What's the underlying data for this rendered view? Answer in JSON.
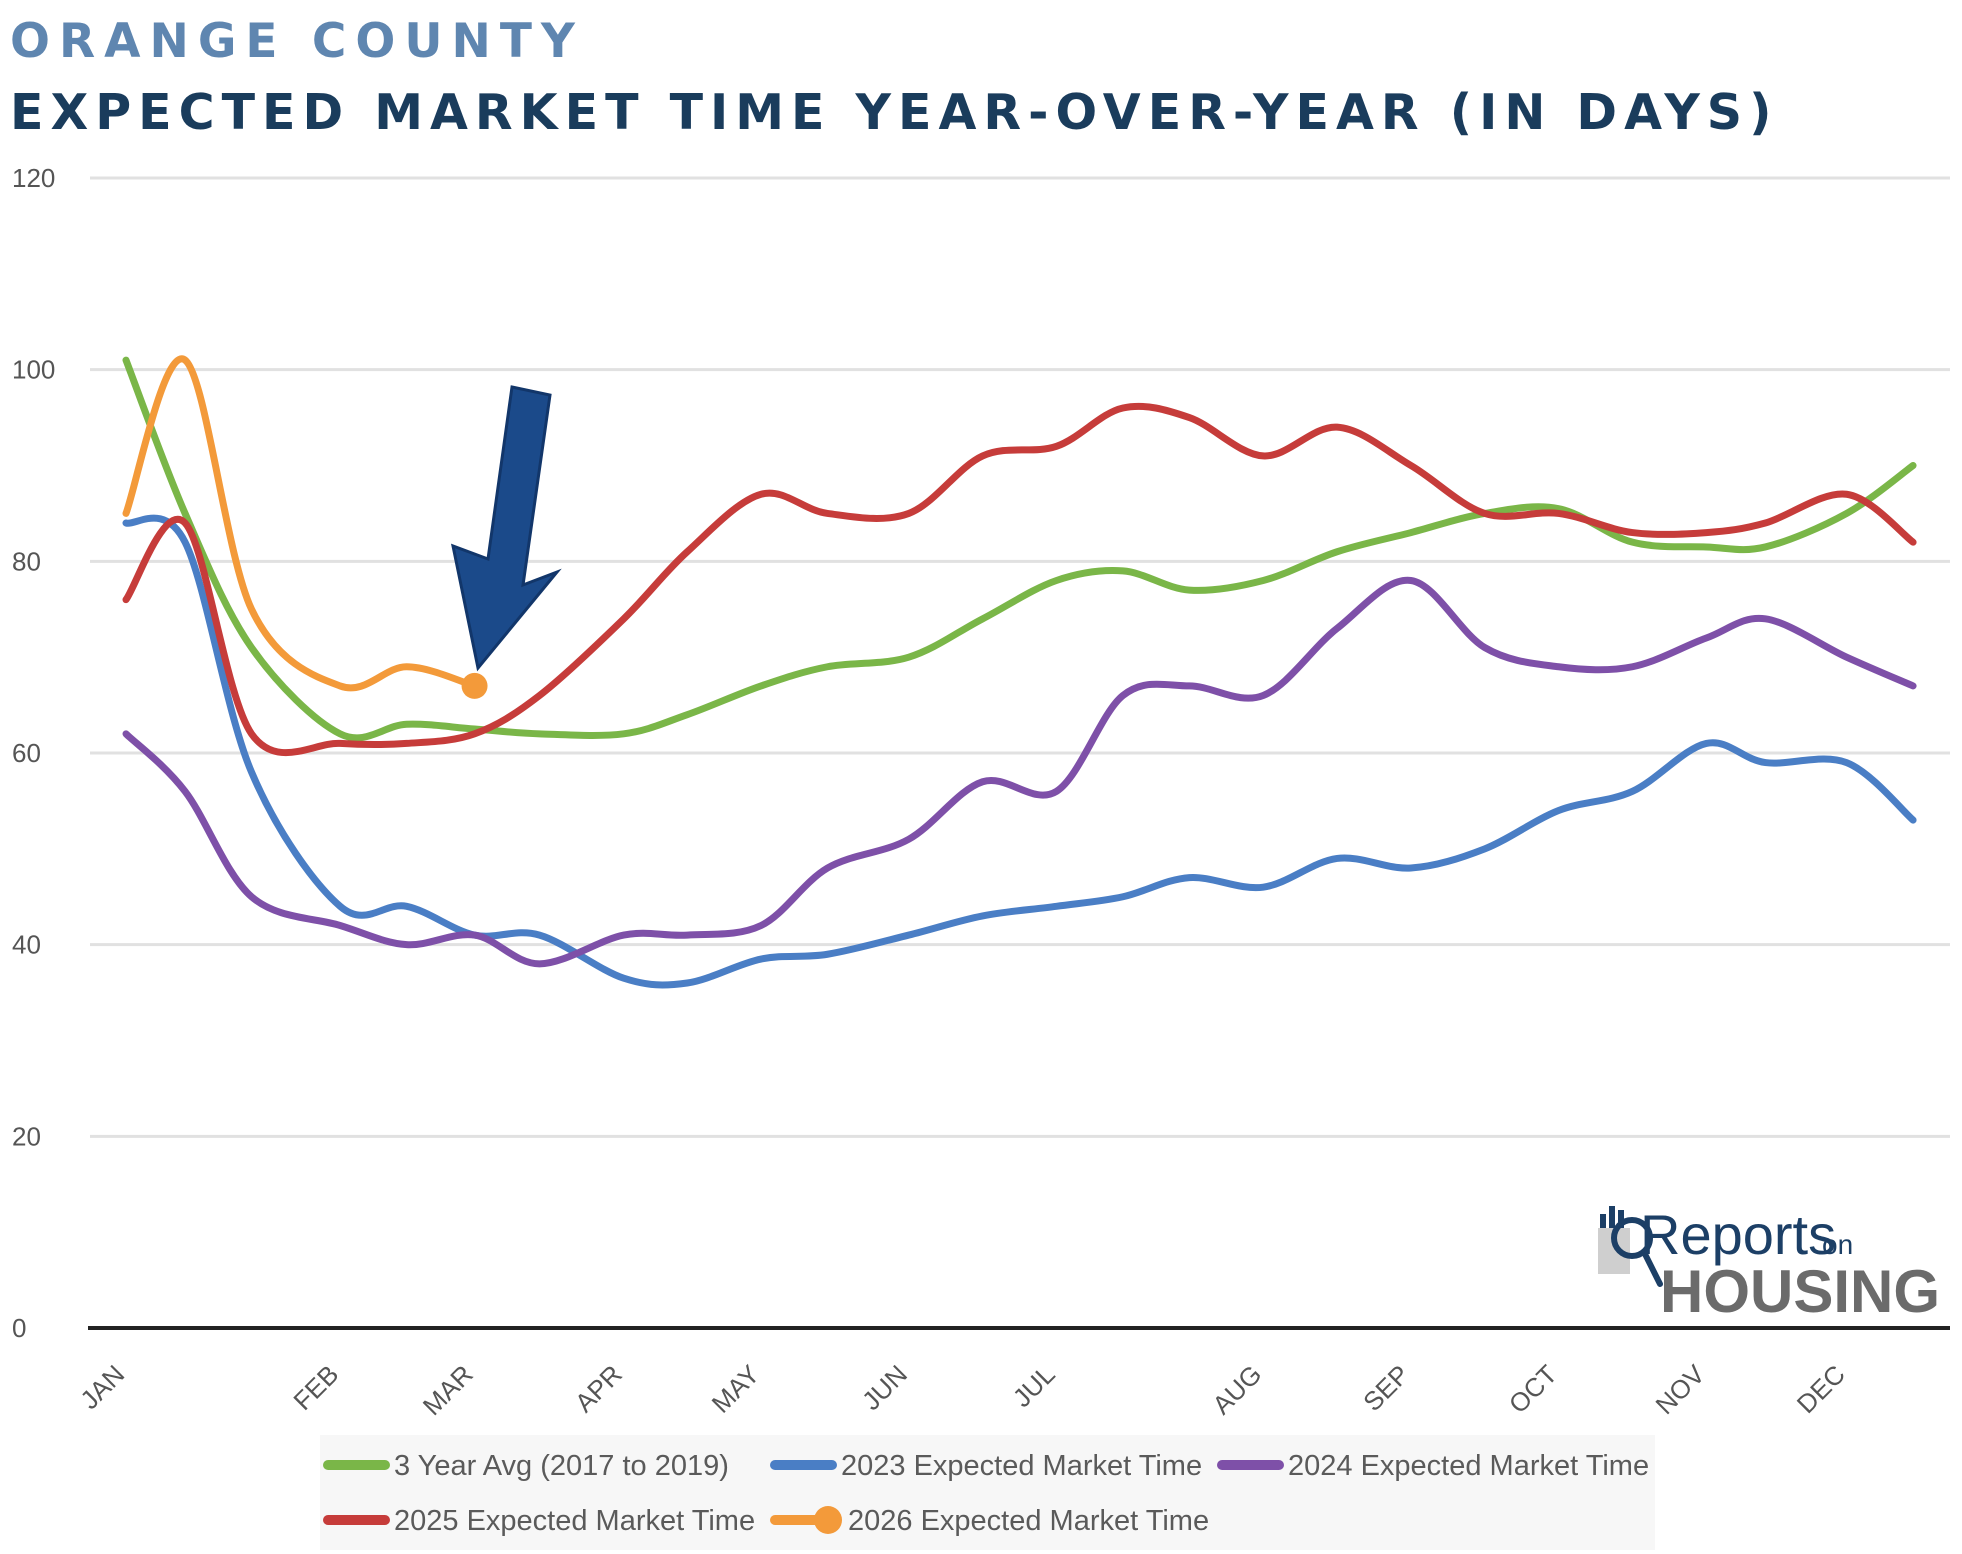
{
  "header": {
    "region": "ORANGE COUNTY",
    "title": "EXPECTED MARKET TIME YEAR-OVER-YEAR (IN DAYS)"
  },
  "logo": {
    "line1": "Reports",
    "line1_suffix": "on",
    "line2": "HOUSING"
  },
  "chart_data": {
    "type": "line",
    "title": "EXPECTED MARKET TIME YEAR-OVER-YEAR (IN DAYS)",
    "ylim": [
      0,
      120
    ],
    "yticks": [
      0,
      20,
      40,
      60,
      80,
      100,
      120
    ],
    "grid": true,
    "legend_position": "bottom",
    "categories": [
      "JAN",
      "FEB",
      "MAR",
      "APR",
      "MAY",
      "JUN",
      "JUL",
      "AUG",
      "SEP",
      "OCT",
      "NOV",
      "DEC"
    ],
    "x_positions": [
      0,
      1.45,
      2.36,
      3.37,
      4.3,
      5.3,
      6.3,
      7.7,
      8.7,
      9.7,
      10.7,
      11.65
    ],
    "x_range": [
      0,
      12.35
    ],
    "series": [
      {
        "name": "3 Year Avg (2017 to 2019)",
        "color": "#7ab648",
        "x": [
          0,
          0.4,
          0.85,
          1.45,
          1.9,
          2.36,
          2.8,
          3.37,
          3.8,
          4.3,
          4.75,
          5.3,
          5.8,
          6.3,
          6.75,
          7.2,
          7.7,
          8.2,
          8.7,
          9.2,
          9.7,
          10.2,
          10.7,
          11.1,
          11.65,
          12.1
        ],
        "y": [
          101,
          85,
          71,
          62,
          63,
          62.5,
          62,
          62,
          64,
          67,
          69,
          70,
          74,
          78,
          79,
          77,
          78,
          81,
          83,
          85,
          85.5,
          82,
          81.5,
          81.5,
          85,
          90
        ]
      },
      {
        "name": "2023 Expected Market Time",
        "color": "#4a7ec5",
        "x": [
          0,
          0.4,
          0.85,
          1.45,
          1.9,
          2.36,
          2.8,
          3.37,
          3.8,
          4.3,
          4.75,
          5.3,
          5.8,
          6.3,
          6.75,
          7.2,
          7.7,
          8.2,
          8.7,
          9.2,
          9.7,
          10.2,
          10.7,
          11.1,
          11.65,
          12.1
        ],
        "y": [
          84,
          82,
          58,
          44,
          44,
          41,
          41,
          36.5,
          36,
          38.5,
          39,
          41,
          43,
          44,
          45,
          47,
          46,
          49,
          48,
          50,
          54,
          56,
          61,
          59,
          59,
          53
        ]
      },
      {
        "name": "2024 Expected Market Time",
        "color": "#7e50a8",
        "x": [
          0,
          0.4,
          0.85,
          1.45,
          1.9,
          2.36,
          2.8,
          3.37,
          3.8,
          4.3,
          4.75,
          5.3,
          5.8,
          6.3,
          6.75,
          7.2,
          7.7,
          8.2,
          8.7,
          9.2,
          9.7,
          10.2,
          10.7,
          11.1,
          11.65,
          12.1
        ],
        "y": [
          62,
          56,
          45,
          42,
          40,
          41,
          38,
          41,
          41,
          42,
          48,
          51,
          57,
          56,
          66,
          67,
          66,
          73,
          78,
          71,
          69,
          69,
          72,
          74,
          70,
          67
        ]
      },
      {
        "name": "2025 Expected Market Time",
        "color": "#c63c3a",
        "x": [
          0,
          0.4,
          0.85,
          1.45,
          1.9,
          2.36,
          2.8,
          3.37,
          3.8,
          4.3,
          4.75,
          5.3,
          5.8,
          6.3,
          6.75,
          7.2,
          7.7,
          8.2,
          8.7,
          9.2,
          9.7,
          10.2,
          10.7,
          11.1,
          11.65,
          12.1
        ],
        "y": [
          76,
          84,
          62,
          61,
          61,
          62,
          66,
          74,
          81,
          87,
          85,
          85,
          91,
          92,
          96,
          95,
          91,
          94,
          90,
          85,
          85,
          83,
          83,
          84,
          87,
          82
        ]
      },
      {
        "name": "2026 Expected Market Time",
        "color": "#f39a3a",
        "x": [
          0,
          0.4,
          0.85,
          1.45,
          1.9,
          2.36
        ],
        "y": [
          85,
          101,
          75,
          67,
          69,
          67
        ],
        "marker_last": true
      }
    ],
    "annotation": {
      "type": "arrow",
      "points_to": {
        "x": 2.36,
        "y": 67
      }
    }
  }
}
